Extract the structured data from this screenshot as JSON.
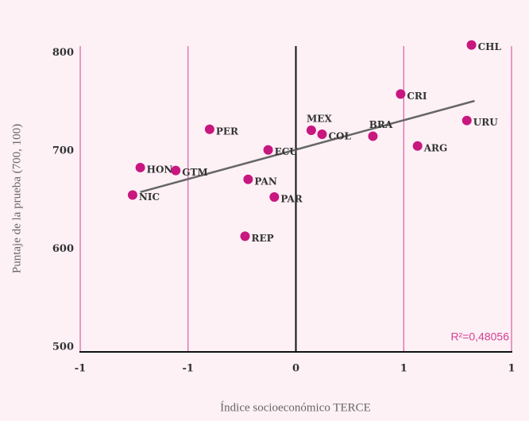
{
  "chart_data": {
    "type": "scatter",
    "x_label": "Índice socioeconómico TERCE",
    "y_label": "Puntaje de la prueba (700, 100)",
    "annotation": "R²=0,48056",
    "color": "#c8177f",
    "categories": [
      "CHL",
      "CRI",
      "URU",
      "BRA",
      "ARG",
      "MEX",
      "COL",
      "ECU",
      "PER",
      "HON",
      "GTM",
      "NIC",
      "PAN",
      "PAR",
      "REP"
    ],
    "x": [
      1.14,
      0.68,
      1.11,
      0.5,
      0.79,
      0.1,
      0.17,
      -0.18,
      -0.56,
      -1.01,
      -0.78,
      -1.06,
      -0.31,
      -0.14,
      -0.33
    ],
    "values": [
      808,
      758,
      731,
      715,
      705,
      721,
      717,
      701,
      722,
      683,
      680,
      655,
      671,
      653,
      613
    ],
    "trendline": {
      "x": [
        -1.01,
        1.16
      ],
      "y": [
        658,
        751
      ],
      "color": "#666666"
    },
    "xlim": [
      -1.4,
      1.4
    ],
    "xticks": [
      {
        "value": -1.4,
        "label": "-1"
      },
      {
        "value": -0.7,
        "label": "-1"
      },
      0,
      {
        "value": 0.7,
        "label": "1"
      },
      {
        "value": 1.4,
        "label": "1"
      }
    ],
    "ylim": [
      495,
      815
    ],
    "yticks": [
      500,
      600,
      700,
      800
    ],
    "grid": true
  }
}
